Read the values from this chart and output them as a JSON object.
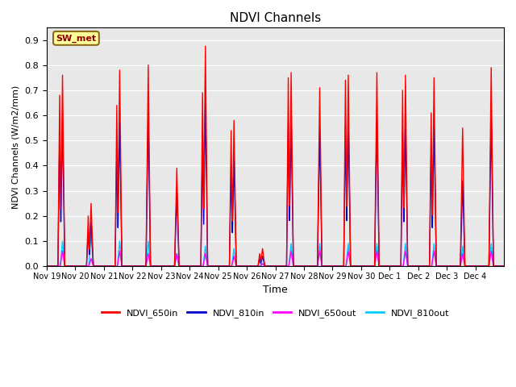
{
  "title": "NDVI Channels",
  "ylabel": "NDVI Channels (W/m2/mm)",
  "xlabel": "Time",
  "annotation": "SW_met",
  "ylim": [
    0.0,
    0.95
  ],
  "yticks": [
    0.0,
    0.1,
    0.2,
    0.3,
    0.4,
    0.5,
    0.6,
    0.7,
    0.8,
    0.9
  ],
  "xtick_labels": [
    "Nov 19",
    "Nov 20",
    "Nov 21",
    "Nov 22",
    "Nov 23",
    "Nov 24",
    "Nov 25",
    "Nov 26",
    "Nov 27",
    "Nov 28",
    "Nov 29",
    "Nov 30",
    "Dec 1",
    "Dec 2",
    "Dec 3",
    "Dec 4"
  ],
  "colors": {
    "NDVI_650in": "#ff0000",
    "NDVI_810in": "#0000cc",
    "NDVI_650out": "#ff00ff",
    "NDVI_810out": "#00ccff"
  },
  "background_color": "#e8e8e8",
  "peaks": {
    "NDVI_650in": [
      0.76,
      0.25,
      0.78,
      0.8,
      0.39,
      0.875,
      0.58,
      0.07,
      0.77,
      0.71,
      0.76,
      0.77,
      0.76,
      0.75,
      0.55,
      0.79
    ],
    "NDVI_810in": [
      0.58,
      0.18,
      0.57,
      0.6,
      0.29,
      0.645,
      0.43,
      0.04,
      0.58,
      0.54,
      0.58,
      0.58,
      0.57,
      0.56,
      0.34,
      0.6
    ],
    "NDVI_650out": [
      0.06,
      0.03,
      0.06,
      0.05,
      0.05,
      0.05,
      0.04,
      0.01,
      0.06,
      0.06,
      0.06,
      0.06,
      0.06,
      0.06,
      0.05,
      0.06
    ],
    "NDVI_810out": [
      0.1,
      0.12,
      0.1,
      0.1,
      0.05,
      0.08,
      0.07,
      0.01,
      0.09,
      0.09,
      0.09,
      0.09,
      0.09,
      0.09,
      0.08,
      0.09
    ]
  },
  "secondary_peaks": {
    "NDVI_650in": [
      0.68,
      0.2,
      0.64,
      0.0,
      0.0,
      0.69,
      0.54,
      0.05,
      0.75,
      0.0,
      0.74,
      0.0,
      0.7,
      0.61,
      0.0,
      0.0
    ],
    "NDVI_810in": [
      0.53,
      0.14,
      0.46,
      0.0,
      0.0,
      0.5,
      0.4,
      0.03,
      0.57,
      0.0,
      0.56,
      0.0,
      0.53,
      0.46,
      0.0,
      0.0
    ],
    "NDVI_650out": [
      0.0,
      0.0,
      0.0,
      0.0,
      0.0,
      0.0,
      0.0,
      0.0,
      0.0,
      0.0,
      0.0,
      0.0,
      0.0,
      0.0,
      0.0,
      0.0
    ],
    "NDVI_810out": [
      0.0,
      0.0,
      0.0,
      0.0,
      0.0,
      0.0,
      0.0,
      0.0,
      0.0,
      0.0,
      0.0,
      0.0,
      0.0,
      0.0,
      0.0,
      0.0
    ]
  }
}
